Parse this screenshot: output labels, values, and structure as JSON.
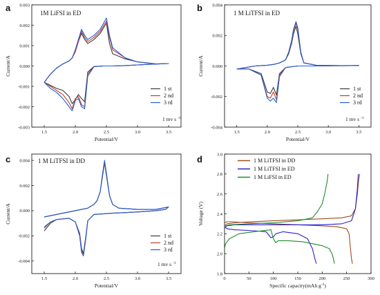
{
  "colors": {
    "st1": "#3a3a3a",
    "nd2": "#c0392b",
    "rd3": "#1e5fd6",
    "dd": "#9b4a1f",
    "ed": "#2a1fd0",
    "lifsi": "#1e8a2a"
  },
  "chart_data": [
    {
      "panel": "a",
      "type": "line",
      "title": "1M LiFSI in ED",
      "xlabel": "Potential/V",
      "ylabel": "Current/A",
      "xlim": [
        1.3,
        3.7
      ],
      "ylim": [
        -0.003,
        0.003
      ],
      "xticks": [
        "1.5",
        "2.0",
        "2.5",
        "3.0",
        "3.5"
      ],
      "yticks": [
        "-0.003",
        "-0.002",
        "-0.001",
        "0.000",
        "0.001",
        "0.002",
        "0.003"
      ],
      "note": "1 mv s",
      "note_exp": "-1",
      "series": [
        {
          "name": "1 st",
          "color": "#3a3a3a",
          "x": [
            1.5,
            1.6,
            1.7,
            1.8,
            1.9,
            1.95,
            2.0,
            2.05,
            2.1,
            2.15,
            2.2,
            2.3,
            2.4,
            2.45,
            2.5,
            2.55,
            2.6,
            2.8,
            3.0,
            3.2,
            3.5,
            3.3,
            3.0,
            2.8,
            2.6,
            2.55,
            2.5,
            2.4,
            2.3,
            2.2,
            2.15,
            2.1,
            2.05,
            2.0,
            1.95,
            1.9,
            1.8,
            1.7,
            1.6,
            1.5
          ],
          "y": [
            -0.0008,
            -0.00095,
            -0.0011,
            -0.0012,
            -0.0015,
            -0.00185,
            -0.00165,
            -0.0014,
            -0.0016,
            -0.00175,
            -0.0003,
            -2e-05,
            -1e-05,
            0,
            0,
            0,
            0,
            2e-05,
            5e-05,
            8e-05,
            0.00012,
            0.0001,
            0.0002,
            0.00035,
            0.0006,
            0.0011,
            0.0021,
            0.0016,
            0.0013,
            0.0011,
            0.0013,
            0.0016,
            0.0012,
            0.0007,
            0.0004,
            0.00025,
            0.0001,
            -0.0001,
            -0.0004,
            -0.0008
          ]
        },
        {
          "name": "2 nd",
          "color": "#c0392b",
          "x": [
            1.5,
            1.6,
            1.7,
            1.8,
            1.9,
            1.95,
            2.0,
            2.05,
            2.1,
            2.15,
            2.2,
            2.3,
            2.4,
            2.45,
            2.5,
            2.55,
            2.6,
            2.8,
            3.0,
            3.2,
            3.5,
            3.3,
            3.0,
            2.8,
            2.6,
            2.55,
            2.5,
            2.4,
            2.3,
            2.2,
            2.15,
            2.1,
            2.05,
            2.0,
            1.95,
            1.9,
            1.8,
            1.7,
            1.6,
            1.5
          ],
          "y": [
            -0.0008,
            -0.001,
            -0.0012,
            -0.0014,
            -0.0018,
            -0.0021,
            -0.0016,
            -0.0015,
            -0.0019,
            -0.002,
            -0.0004,
            -3e-05,
            -1e-05,
            0,
            0,
            0,
            0,
            2e-05,
            5e-05,
            8e-05,
            0.00012,
            0.0001,
            0.0002,
            0.0004,
            0.0008,
            0.0014,
            0.0022,
            0.0017,
            0.0014,
            0.0012,
            0.0014,
            0.0017,
            0.0012,
            0.0007,
            0.0004,
            0.00025,
            0.0001,
            -0.0001,
            -0.0004,
            -0.0008
          ]
        },
        {
          "name": "3 rd",
          "color": "#1e5fd6",
          "x": [
            1.5,
            1.6,
            1.7,
            1.8,
            1.9,
            1.95,
            2.0,
            2.05,
            2.1,
            2.15,
            2.2,
            2.3,
            2.4,
            2.45,
            2.5,
            2.55,
            2.6,
            2.8,
            3.0,
            3.2,
            3.5,
            3.3,
            3.0,
            2.8,
            2.6,
            2.55,
            2.5,
            2.4,
            2.3,
            2.2,
            2.15,
            2.1,
            2.05,
            2.0,
            1.95,
            1.9,
            1.8,
            1.7,
            1.6,
            1.5
          ],
          "y": [
            -0.0008,
            -0.0011,
            -0.0013,
            -0.0016,
            -0.002,
            -0.0022,
            -0.0017,
            -0.0016,
            -0.002,
            -0.0021,
            -0.0005,
            -3e-05,
            -1e-05,
            0,
            0,
            0,
            0,
            2e-05,
            5e-05,
            8e-05,
            0.00012,
            0.0001,
            0.0002,
            0.0004,
            0.0009,
            0.0015,
            0.00235,
            0.0018,
            0.0015,
            0.0013,
            0.0015,
            0.0018,
            0.0013,
            0.0008,
            0.0004,
            0.00025,
            0.0001,
            -0.0001,
            -0.0004,
            -0.0008
          ]
        }
      ]
    },
    {
      "panel": "b",
      "type": "line",
      "title": "1 M LiTFSI in ED",
      "xlabel": "Potential/V",
      "ylabel": "Current/A",
      "xlim": [
        1.3,
        3.7
      ],
      "ylim": [
        -0.004,
        0.004
      ],
      "xticks": [
        "1.5",
        "2.0",
        "2.5",
        "3.0",
        "3.5"
      ],
      "yticks": [
        "-0.004",
        "-0.002",
        "0.000",
        "0.002",
        "0.004"
      ],
      "note": "1 mv s",
      "note_exp": "-1",
      "series": [
        {
          "name": "1 st",
          "color": "#3a3a3a",
          "x": [
            1.5,
            1.7,
            1.9,
            2.0,
            2.05,
            2.1,
            2.15,
            2.2,
            2.3,
            2.5,
            2.8,
            3.1,
            3.5,
            3.2,
            2.8,
            2.6,
            2.55,
            2.5,
            2.47,
            2.43,
            2.4,
            2.35,
            2.3,
            2.2,
            2.1,
            2.0,
            1.8,
            1.5
          ],
          "y": [
            -0.0002,
            -0.0002,
            -0.0005,
            -0.0017,
            -0.0018,
            -0.0014,
            -0.0019,
            -0.0005,
            -0.0001,
            0,
            0,
            2e-05,
            3e-05,
            2e-05,
            5e-05,
            0.0002,
            0.0008,
            0.0021,
            0.0026,
            0.0021,
            0.0015,
            0.0008,
            0.0004,
            0.0002,
            0.0001,
            5e-05,
            0,
            -0.0002
          ]
        },
        {
          "name": "2 nd",
          "color": "#c0392b",
          "x": [
            1.5,
            1.7,
            1.9,
            2.0,
            2.05,
            2.1,
            2.15,
            2.2,
            2.3,
            2.5,
            2.8,
            3.1,
            3.5,
            3.2,
            2.8,
            2.6,
            2.55,
            2.5,
            2.47,
            2.43,
            2.4,
            2.35,
            2.3,
            2.2,
            2.1,
            2.0,
            1.8,
            1.5
          ],
          "y": [
            -0.0002,
            -0.0002,
            -0.0006,
            -0.002,
            -0.0021,
            -0.0017,
            -0.0022,
            -0.0006,
            -0.0001,
            0,
            0,
            2e-05,
            3e-05,
            2e-05,
            5e-05,
            0.0002,
            0.0009,
            0.0024,
            0.0028,
            0.0023,
            0.0016,
            0.0009,
            0.0004,
            0.0002,
            0.0001,
            5e-05,
            0,
            -0.0002
          ]
        },
        {
          "name": "3 rd",
          "color": "#1e5fd6",
          "x": [
            1.5,
            1.7,
            1.9,
            2.0,
            2.05,
            2.1,
            2.15,
            2.2,
            2.3,
            2.5,
            2.8,
            3.1,
            3.5,
            3.2,
            2.8,
            2.6,
            2.55,
            2.5,
            2.47,
            2.43,
            2.4,
            2.35,
            2.3,
            2.2,
            2.1,
            2.0,
            1.8,
            1.5
          ],
          "y": [
            -0.0002,
            -0.0002,
            -0.0006,
            -0.0021,
            -0.0023,
            -0.0021,
            -0.0024,
            -0.0007,
            -0.0001,
            0,
            0,
            2e-05,
            3e-05,
            2e-05,
            5e-05,
            0.0002,
            0.0009,
            0.0025,
            0.0029,
            0.0024,
            0.0017,
            0.0009,
            0.0004,
            0.0002,
            0.0001,
            5e-05,
            0,
            -0.0002
          ]
        }
      ]
    },
    {
      "panel": "c",
      "type": "line",
      "title": "1 M LiTFSI in DD",
      "xlabel": "Potential/V",
      "ylabel": "Current/A",
      "xlim": [
        1.3,
        3.7
      ],
      "ylim": [
        -0.005,
        0.0045
      ],
      "xticks": [
        "1.5",
        "2.0",
        "2.5",
        "3.0",
        "3.5"
      ],
      "yticks": [
        "-0.004",
        "-0.002",
        "0.000",
        "0.002",
        "0.004"
      ],
      "note": "1 mv s",
      "note_exp": "-1",
      "series": [
        {
          "name": "1 st",
          "color": "#3a3a3a",
          "x": [
            1.5,
            1.6,
            1.7,
            1.9,
            2.0,
            2.07,
            2.1,
            2.13,
            2.17,
            2.2,
            2.3,
            2.6,
            3.0,
            3.3,
            3.45,
            3.5,
            3.3,
            3.0,
            2.7,
            2.6,
            2.55,
            2.5,
            2.47,
            2.44,
            2.4,
            2.35,
            2.3,
            2.2,
            2.0,
            1.8,
            1.6,
            1.5
          ],
          "y": [
            -0.0016,
            -0.001,
            -0.0007,
            -0.0006,
            -0.0009,
            -0.0018,
            -0.003,
            -0.0034,
            -0.002,
            -0.0008,
            -0.0003,
            -0.0002,
            -0.0001,
            0,
            0.0001,
            0.0003,
            0.0001,
            0.0001,
            0.0002,
            0.0005,
            0.0012,
            0.0028,
            0.0038,
            0.0028,
            0.0015,
            0.0008,
            0.0005,
            0.0002,
            0,
            -0.0002,
            -0.0004,
            -0.0005
          ]
        },
        {
          "name": "2 nd",
          "color": "#c0392b",
          "x": [
            1.5,
            1.6,
            1.7,
            1.9,
            2.0,
            2.07,
            2.1,
            2.13,
            2.17,
            2.2,
            2.3,
            2.6,
            3.0,
            3.3,
            3.45,
            3.5,
            3.3,
            3.0,
            2.7,
            2.6,
            2.55,
            2.5,
            2.47,
            2.44,
            2.4,
            2.35,
            2.3,
            2.2,
            2.0,
            1.8,
            1.6,
            1.5
          ],
          "y": [
            -0.0014,
            -0.0009,
            -0.0007,
            -0.0006,
            -0.0009,
            -0.0019,
            -0.0032,
            -0.0035,
            -0.0021,
            -0.0008,
            -0.0003,
            -0.0002,
            -0.0001,
            0,
            0.0001,
            0.0003,
            0.0001,
            0.0001,
            0.0002,
            0.0005,
            0.0012,
            0.0029,
            0.0039,
            0.0029,
            0.0015,
            0.0008,
            0.0005,
            0.0002,
            0,
            -0.0002,
            -0.0004,
            -0.0005
          ]
        },
        {
          "name": "3 rd",
          "color": "#1e5fd6",
          "x": [
            1.5,
            1.6,
            1.7,
            1.9,
            2.0,
            2.07,
            2.1,
            2.13,
            2.17,
            2.2,
            2.3,
            2.6,
            3.0,
            3.3,
            3.45,
            3.5,
            3.3,
            3.0,
            2.7,
            2.6,
            2.55,
            2.5,
            2.47,
            2.44,
            2.4,
            2.35,
            2.3,
            2.2,
            2.0,
            1.8,
            1.6,
            1.5
          ],
          "y": [
            -0.0013,
            -0.0009,
            -0.0007,
            -0.0006,
            -0.0009,
            -0.002,
            -0.0033,
            -0.0036,
            -0.0022,
            -0.0008,
            -0.0003,
            -0.0002,
            -0.0001,
            0,
            0.0001,
            0.0003,
            0.0001,
            0.0001,
            0.0002,
            0.0005,
            0.0012,
            0.003,
            0.004,
            0.003,
            0.0015,
            0.0008,
            0.0005,
            0.0002,
            0,
            -0.0002,
            -0.0004,
            -0.0005
          ]
        }
      ]
    },
    {
      "panel": "d",
      "type": "line",
      "title": "",
      "xlabel": "Specific capacity(mAh g",
      "xlabel_exp": "-1",
      "xlabel_tail": ")",
      "ylabel": "Voltage (V)",
      "xlim": [
        0,
        300
      ],
      "ylim": [
        1.8,
        3.0
      ],
      "xticks": [
        "0",
        "50",
        "100",
        "150",
        "200",
        "250",
        "300"
      ],
      "yticks": [
        "1.8",
        "2.0",
        "2.2",
        "2.4",
        "2.6",
        "2.8",
        "3.0"
      ],
      "series": [
        {
          "name": "1 M LiTFSI in DD",
          "color": "#9b4a1f",
          "paths": [
            {
              "x": [
                0,
                5,
                15,
                50,
                100,
                150,
                200,
                230,
                250,
                255,
                258,
                260,
                262
              ],
              "y": [
                2.31,
                2.32,
                2.32,
                2.31,
                2.3,
                2.29,
                2.28,
                2.27,
                2.25,
                2.2,
                2.05,
                1.95,
                1.9
              ]
            },
            {
              "x": [
                0,
                5,
                20,
                50,
                100,
                150,
                200,
                240,
                260,
                268,
                272,
                275,
                277
              ],
              "y": [
                2.28,
                2.3,
                2.31,
                2.32,
                2.33,
                2.34,
                2.35,
                2.36,
                2.38,
                2.45,
                2.6,
                2.75,
                2.8
              ]
            }
          ]
        },
        {
          "name": "1 M LiTFSI in ED",
          "color": "#2a1fd0",
          "paths": [
            {
              "x": [
                0,
                5,
                20,
                60,
                85,
                95,
                100,
                105,
                120,
                150,
                170,
                180,
                185,
                188
              ],
              "y": [
                2.27,
                2.25,
                2.24,
                2.23,
                2.22,
                2.16,
                2.17,
                2.2,
                2.22,
                2.2,
                2.15,
                2.05,
                1.95,
                1.9
              ]
            },
            {
              "x": [
                0,
                5,
                20,
                60,
                100,
                150,
                200,
                240,
                260,
                268,
                272,
                274
              ],
              "y": [
                2.26,
                2.28,
                2.29,
                2.29,
                2.29,
                2.29,
                2.29,
                2.3,
                2.33,
                2.45,
                2.65,
                2.8
              ]
            }
          ]
        },
        {
          "name": "1 M LiFSI   in ED",
          "color": "#1e8a2a",
          "paths": [
            {
              "x": [
                0,
                2,
                10,
                30,
                60,
                95,
                100,
                105,
                110,
                130,
                160,
                200,
                215,
                220,
                223,
                225
              ],
              "y": [
                2.05,
                2.1,
                2.15,
                2.2,
                2.22,
                2.24,
                2.15,
                2.11,
                2.13,
                2.13,
                2.12,
                2.08,
                2.05,
                2.0,
                1.95,
                1.9
              ]
            },
            {
              "x": [
                0,
                3,
                10,
                50,
                100,
                150,
                180,
                190,
                200,
                205,
                210,
                212
              ],
              "y": [
                2.25,
                2.28,
                2.29,
                2.3,
                2.31,
                2.33,
                2.36,
                2.42,
                2.5,
                2.6,
                2.72,
                2.8
              ]
            }
          ]
        }
      ]
    }
  ]
}
